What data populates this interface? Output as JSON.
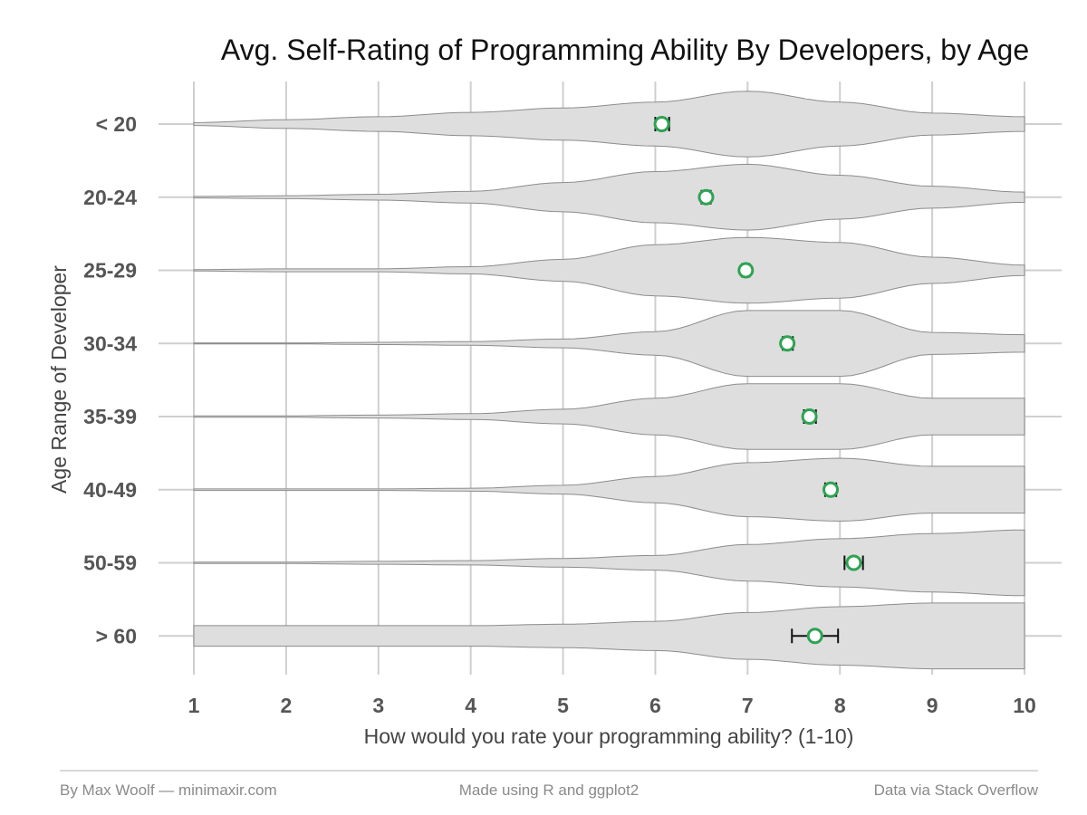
{
  "chart_data": {
    "type": "violin",
    "title": "Avg. Self-Rating of Programming Ability By Developers, by Age",
    "xlabel": "How would you rate your programming ability? (1-10)",
    "ylabel": "Age Range of Developer",
    "xlim": [
      1,
      10
    ],
    "x_ticks": [
      "1",
      "2",
      "3",
      "4",
      "5",
      "6",
      "7",
      "8",
      "9",
      "10"
    ],
    "grid": true,
    "mean_point_color": "#2ea352",
    "violin_fill": "#dedede",
    "categories": [
      "< 20",
      "20-24",
      "25-29",
      "30-34",
      "35-39",
      "40-49",
      "50-59",
      "> 60"
    ],
    "means": [
      6.07,
      6.55,
      6.98,
      7.43,
      7.67,
      7.9,
      8.15,
      7.73
    ],
    "error_low": [
      6.0,
      6.5,
      6.94,
      7.38,
      7.61,
      7.84,
      8.05,
      7.48
    ],
    "error_high": [
      6.15,
      6.6,
      7.02,
      7.49,
      7.74,
      7.96,
      8.25,
      7.98
    ],
    "half_widths": [
      [
        0.02,
        0.06,
        0.1,
        0.16,
        0.22,
        0.3,
        0.45,
        0.3,
        0.15,
        0.1
      ],
      [
        0.01,
        0.02,
        0.04,
        0.08,
        0.2,
        0.35,
        0.45,
        0.3,
        0.15,
        0.07
      ],
      [
        0.01,
        0.02,
        0.02,
        0.05,
        0.15,
        0.35,
        0.45,
        0.38,
        0.18,
        0.07
      ],
      [
        0.005,
        0.005,
        0.015,
        0.025,
        0.06,
        0.16,
        0.45,
        0.45,
        0.15,
        0.12
      ],
      [
        0.01,
        0.01,
        0.02,
        0.04,
        0.1,
        0.25,
        0.45,
        0.45,
        0.25,
        0.25
      ],
      [
        0.01,
        0.01,
        0.01,
        0.02,
        0.06,
        0.18,
        0.37,
        0.43,
        0.32,
        0.32
      ],
      [
        0.01,
        0.01,
        0.02,
        0.03,
        0.06,
        0.1,
        0.25,
        0.33,
        0.4,
        0.45
      ],
      [
        0.14,
        0.14,
        0.14,
        0.14,
        0.16,
        0.2,
        0.32,
        0.4,
        0.45,
        0.45
      ]
    ]
  },
  "footer": {
    "left": "By Max Woolf — minimaxir.com",
    "center": "Made using R and ggplot2",
    "right": "Data via Stack Overflow"
  }
}
